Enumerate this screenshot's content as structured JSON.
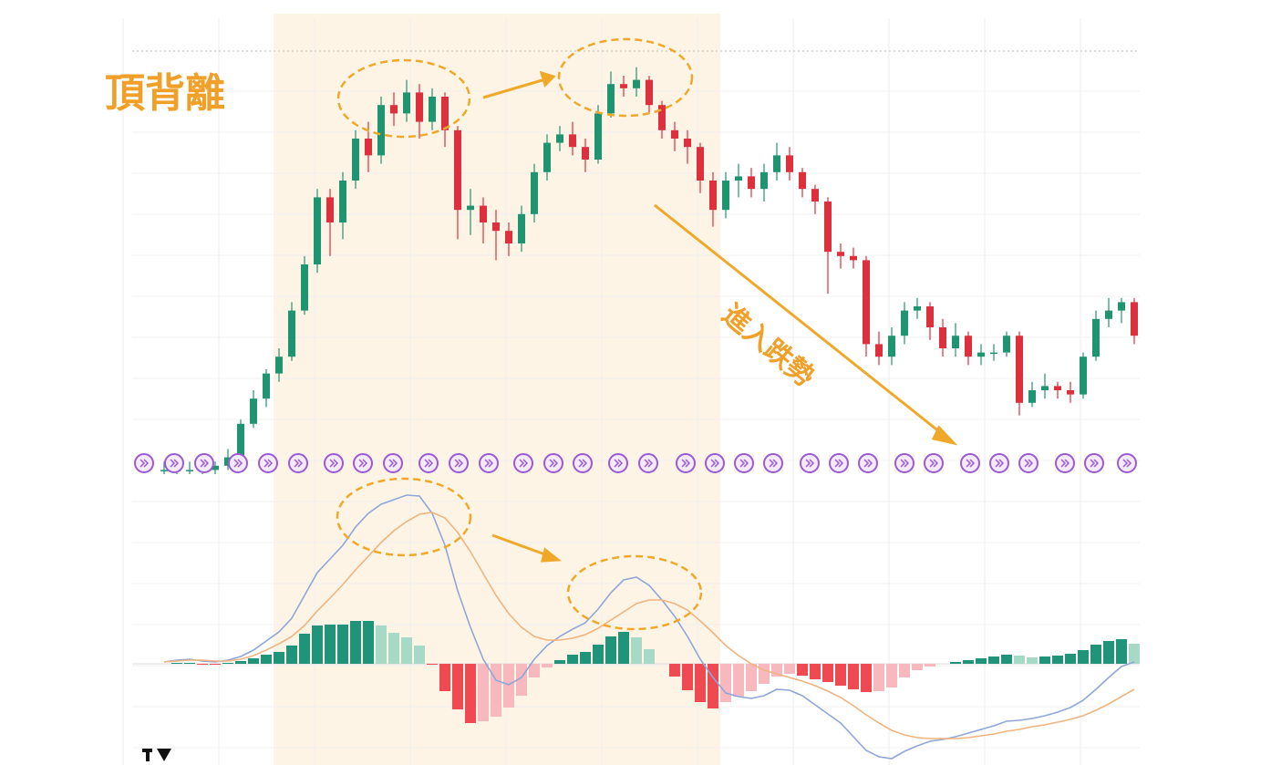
{
  "chart_data": [
    {
      "type": "candlestick",
      "title": "頂背離",
      "annotations": [
        "進入跌勢"
      ],
      "up_color": "#1f9470",
      "down_color": "#dd2f3c",
      "ylim": [
        0,
        100
      ],
      "open": [
        1,
        1,
        1,
        1,
        1,
        2,
        4,
        12,
        18,
        24,
        28,
        39,
        50,
        66,
        60,
        70,
        80,
        76,
        88,
        86,
        91,
        84,
        90,
        82,
        63,
        64,
        60,
        58,
        55,
        62,
        72,
        79,
        81,
        78,
        75,
        86,
        93,
        92,
        94,
        88,
        82,
        80,
        78,
        70,
        63,
        70,
        71,
        68,
        72,
        76,
        72,
        68,
        65,
        53,
        52,
        51,
        31,
        28,
        33,
        39,
        40,
        35,
        30,
        33,
        28,
        29,
        29,
        33,
        17,
        20,
        21,
        20,
        19,
        28,
        37,
        39,
        41
      ],
      "high": [
        3,
        2,
        3,
        2,
        3,
        6,
        13,
        20,
        25,
        30,
        41,
        52,
        68,
        68,
        72,
        82,
        84,
        90,
        91,
        94,
        93,
        92,
        91,
        83,
        68,
        66,
        63,
        60,
        64,
        74,
        81,
        83,
        84,
        80,
        88,
        96,
        95,
        97,
        95,
        89,
        84,
        82,
        79,
        72,
        72,
        74,
        73,
        74,
        79,
        78,
        73,
        69,
        66,
        55,
        54,
        52,
        34,
        35,
        41,
        42,
        41,
        37,
        36,
        34,
        31,
        31,
        34,
        34,
        22,
        24,
        22,
        22,
        29,
        39,
        42,
        42,
        42
      ],
      "low": [
        0,
        0,
        0,
        0,
        0,
        1,
        3,
        11,
        16,
        22,
        27,
        38,
        48,
        52,
        56,
        68,
        72,
        74,
        83,
        84,
        80,
        82,
        78,
        56,
        57,
        55,
        51,
        52,
        53,
        60,
        70,
        77,
        76,
        72,
        74,
        85,
        90,
        90,
        86,
        80,
        77,
        74,
        67,
        59,
        61,
        66,
        66,
        65,
        70,
        70,
        66,
        62,
        43,
        49,
        49,
        28,
        26,
        26,
        31,
        37,
        32,
        28,
        28,
        26,
        26,
        27,
        28,
        14,
        16,
        18,
        18,
        17,
        18,
        27,
        35,
        36,
        31
      ],
      "close": [
        1,
        1,
        1,
        1,
        2,
        4,
        12,
        18,
        24,
        28,
        39,
        50,
        66,
        60,
        70,
        80,
        76,
        88,
        86,
        91,
        84,
        90,
        82,
        63,
        64,
        60,
        58,
        55,
        62,
        72,
        79,
        81,
        78,
        75,
        86,
        93,
        92,
        94,
        88,
        82,
        80,
        78,
        70,
        63,
        70,
        71,
        68,
        72,
        76,
        72,
        68,
        65,
        53,
        52,
        51,
        31,
        28,
        33,
        39,
        40,
        35,
        30,
        33,
        28,
        29,
        29,
        33,
        17,
        20,
        21,
        20,
        19,
        28,
        37,
        39,
        41,
        33
      ]
    },
    {
      "type": "macd",
      "ylim": [
        -11,
        19
      ],
      "series": [
        {
          "color": "#8fa6d8",
          "values": [
            0.2,
            0.4,
            0.5,
            0.3,
            0.2,
            0.4,
            0.8,
            1.5,
            2.5,
            3.5,
            5,
            7.5,
            10,
            11.5,
            13,
            15,
            16.5,
            17.5,
            18,
            18.5,
            18.4,
            16.5,
            13,
            8,
            4,
            0.5,
            -1.8,
            -2.3,
            -1.5,
            0.5,
            2,
            3,
            3.8,
            4.5,
            6,
            7.8,
            9.2,
            9.5,
            8.6,
            7,
            5.2,
            3,
            0.5,
            -1.5,
            -3.2,
            -3.6,
            -3.8,
            -3.5,
            -2.8,
            -2.9,
            -3.5,
            -4.5,
            -5.5,
            -6.5,
            -8,
            -9.5,
            -10.2,
            -10.4,
            -9.6,
            -9,
            -8.5,
            -8.3,
            -8,
            -7.6,
            -7.2,
            -6.8,
            -6.3,
            -6.2,
            -6,
            -5.7,
            -5.3,
            -4.8,
            -4,
            -2.8,
            -1.5,
            -0.3,
            0.2
          ]
        },
        {
          "color": "#f0b47e",
          "values": [
            0.2,
            0.3,
            0.4,
            0.4,
            0.3,
            0.3,
            0.5,
            0.9,
            1.5,
            2.2,
            3,
            4.2,
            5.8,
            7.2,
            8.7,
            10.3,
            11.8,
            13.3,
            14.6,
            15.6,
            16.4,
            16.6,
            16,
            14.4,
            12.3,
            9.9,
            7.5,
            5.5,
            4,
            3,
            2.6,
            2.6,
            2.8,
            3.2,
            3.9,
            4.8,
            5.7,
            6.6,
            7,
            7,
            6.6,
            5.9,
            4.7,
            3.4,
            2,
            0.9,
            0,
            -0.7,
            -1.1,
            -1.5,
            -1.9,
            -2.4,
            -3,
            -3.7,
            -4.6,
            -5.6,
            -6.5,
            -7.3,
            -7.8,
            -8.1,
            -8.2,
            -8.2,
            -8.2,
            -8.1,
            -7.9,
            -7.7,
            -7.4,
            -7.2,
            -6.9,
            -6.7,
            -6.4,
            -6.1,
            -5.7,
            -5.1,
            -4.4,
            -3.6,
            -2.8
          ]
        }
      ],
      "histogram": [
        0,
        0.1,
        0.1,
        -0.1,
        -0.1,
        0.1,
        0.3,
        0.6,
        1,
        1.3,
        2,
        3.3,
        4.2,
        4.3,
        4.3,
        4.7,
        4.7,
        4.2,
        3.4,
        2.9,
        2,
        -0.1,
        -3,
        -5,
        -6.5,
        -6.3,
        -5.8,
        -4.8,
        -3.5,
        -1.5,
        -0.4,
        0.4,
        1,
        1.3,
        2.1,
        3,
        3.5,
        2.9,
        1.6,
        0,
        -1.4,
        -2.9,
        -4.2,
        -4.9,
        -4.2,
        -3.6,
        -3,
        -2.2,
        -1.4,
        -1.1,
        -1.3,
        -1.7,
        -2,
        -2.4,
        -2.8,
        -3.1,
        -3,
        -2.6,
        -1.5,
        -0.7,
        -0.3,
        0,
        0.2,
        0.4,
        0.6,
        0.8,
        1,
        0.9,
        0.7,
        0.8,
        0.9,
        1.1,
        1.5,
        2.1,
        2.5,
        2.7,
        2.2
      ],
      "histogram_colors": {
        "up_rising": "#1f9478",
        "up_falling": "#a6dac6",
        "down_falling": "#ef4a52",
        "down_rising": "#f7b9be"
      }
    }
  ]
}
